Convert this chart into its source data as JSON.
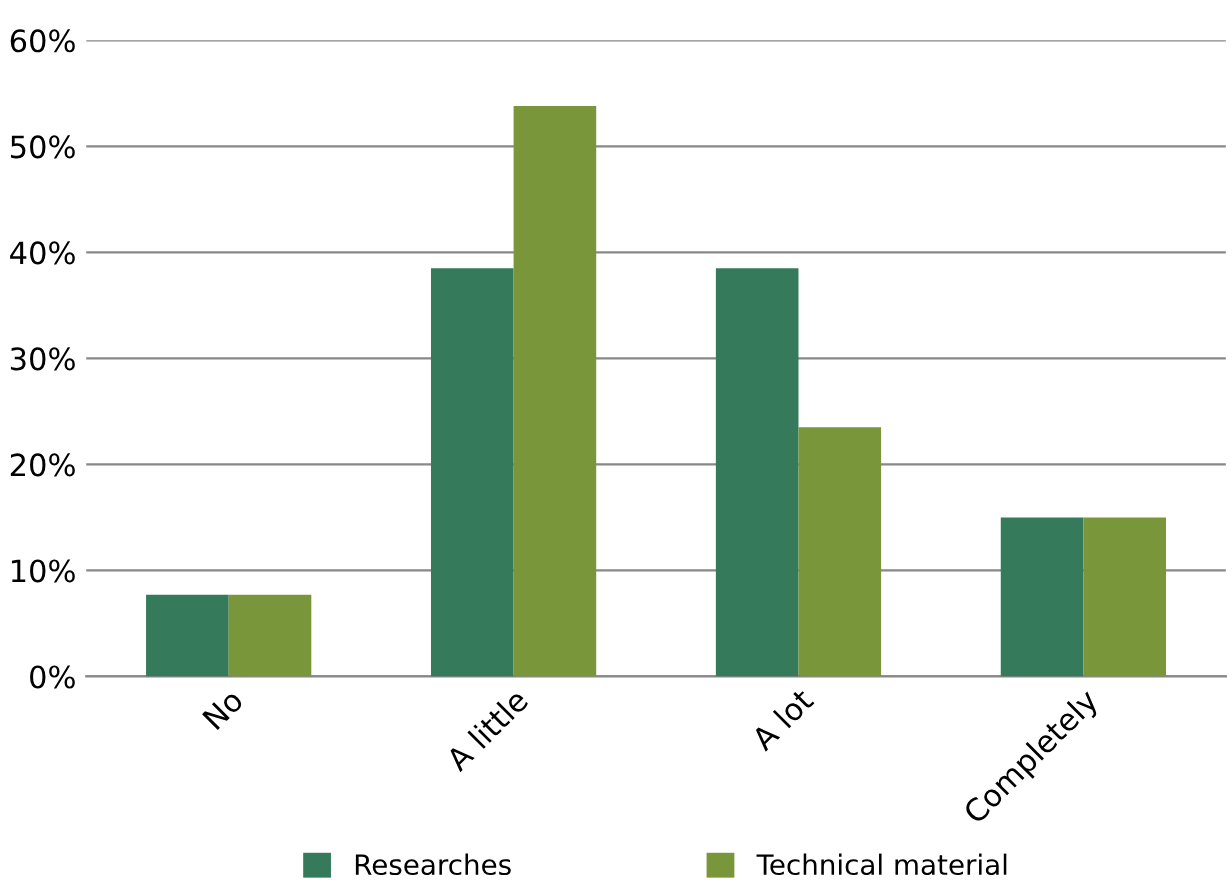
{
  "chart_data": {
    "type": "bar",
    "categories": [
      "No",
      "A little",
      "A lot",
      "Completely"
    ],
    "series": [
      {
        "name": "Researches",
        "color": "#357a5b",
        "values": [
          7.7,
          38.5,
          38.5,
          15
        ]
      },
      {
        "name": "Technical material",
        "color": "#7a963a",
        "values": [
          7.7,
          53.8,
          23.5,
          15
        ]
      }
    ],
    "ylim": [
      0,
      60
    ],
    "yticks": [
      {
        "value": 0,
        "label": "0%"
      },
      {
        "value": 10,
        "label": "10%"
      },
      {
        "value": 20,
        "label": "20%"
      },
      {
        "value": 30,
        "label": "30%"
      },
      {
        "value": 40,
        "label": "40%"
      },
      {
        "value": 50,
        "label": "50%"
      },
      {
        "value": 60,
        "label": "60%"
      }
    ],
    "grid": "y",
    "legend": "bottom"
  }
}
